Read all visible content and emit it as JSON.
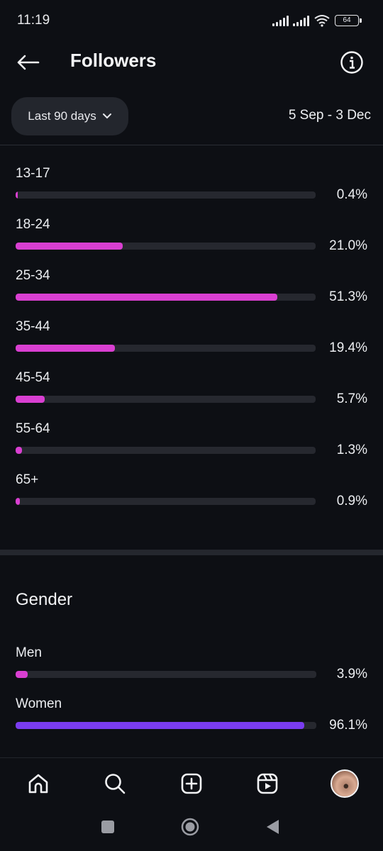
{
  "status_bar": {
    "time": "11:19",
    "battery": "64"
  },
  "header": {
    "title": "Followers"
  },
  "filter": {
    "period_label": "Last 90 days",
    "date_range": "5 Sep - 3 Dec"
  },
  "accent_colors": {
    "age_bar": "#d93fd1",
    "men_bar": "#d93fd1",
    "women_bar": "#7a3cf0"
  },
  "age_groups": [
    {
      "label": "13-17",
      "percent_text": "0.4%",
      "value": 0.4
    },
    {
      "label": "18-24",
      "percent_text": "21.0%",
      "value": 21.0
    },
    {
      "label": "25-34",
      "percent_text": "51.3%",
      "value": 51.3
    },
    {
      "label": "35-44",
      "percent_text": "19.4%",
      "value": 19.4
    },
    {
      "label": "45-54",
      "percent_text": "5.7%",
      "value": 5.7
    },
    {
      "label": "55-64",
      "percent_text": "1.3%",
      "value": 1.3
    },
    {
      "label": "65+",
      "percent_text": "0.9%",
      "value": 0.9
    }
  ],
  "gender": {
    "title": "Gender",
    "items": [
      {
        "label": "Men",
        "percent_text": "3.9%",
        "value": 3.9
      },
      {
        "label": "Women",
        "percent_text": "96.1%",
        "value": 96.1
      }
    ]
  },
  "bottom_nav": {
    "icons": [
      "home-icon",
      "search-icon",
      "create-icon",
      "reels-icon",
      "profile-avatar"
    ]
  },
  "system_nav": {
    "icons": [
      "recents-icon",
      "home-circle-icon",
      "back-triangle-icon"
    ]
  }
}
